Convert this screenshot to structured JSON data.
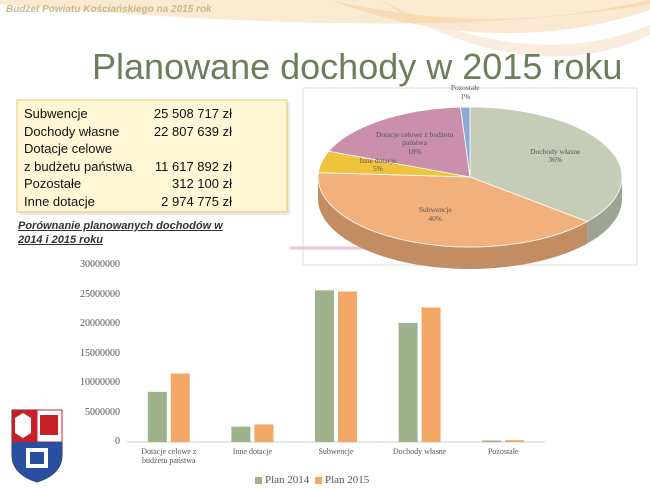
{
  "header": "Budżet Powiatu Kościańskiego na 2015 rok",
  "title": "Planowane dochody w 2015 roku",
  "table": {
    "rows": [
      [
        "Subwencje",
        "25 508 717 zł"
      ],
      [
        "Dochody własne",
        "22 807 639 zł"
      ],
      [
        "Dotacje celowe"
      ],
      [
        "z budżetu państwa",
        "11 617 892 zł"
      ],
      [
        "Pozostałe",
        "312 100 zł"
      ],
      [
        "Inne dotacje",
        "2 974 775 zł"
      ]
    ]
  },
  "chart_data": [
    {
      "type": "pie",
      "categories": [
        "Dochody własne",
        "Subwencje",
        "Inne dotacje",
        "Dotacje celowe z budżetu państwa",
        "Pozostałe"
      ],
      "values": [
        36,
        40,
        5,
        18,
        1
      ],
      "value_labels": [
        "36%",
        "40%",
        "5%",
        "18%",
        "1%"
      ],
      "colors": [
        "#c5cdb6",
        "#f2b07c",
        "#f0c33c",
        "#c98fab",
        "#8fa8d8"
      ]
    },
    {
      "type": "bar",
      "title": "Porównanie planowanych dochodów w 2014 i 2015 roku",
      "categories": [
        "Dotacje celowe z budżetu państwa",
        "Inne dotacje",
        "Subwencje",
        "Dochody własne",
        "Pozostałe"
      ],
      "series": [
        {
          "name": "Plan 2014",
          "color": "#9fb28e",
          "values": [
            8500000,
            2600000,
            25700000,
            20200000,
            250000
          ]
        },
        {
          "name": "Plan 2015",
          "color": "#f4a867",
          "values": [
            11617892,
            2974775,
            25508717,
            22807639,
            312100
          ]
        }
      ],
      "ylim": [
        0,
        30000000
      ],
      "yticks": [
        0,
        5000000,
        10000000,
        15000000,
        20000000,
        25000000,
        30000000
      ],
      "grid": false
    }
  ]
}
